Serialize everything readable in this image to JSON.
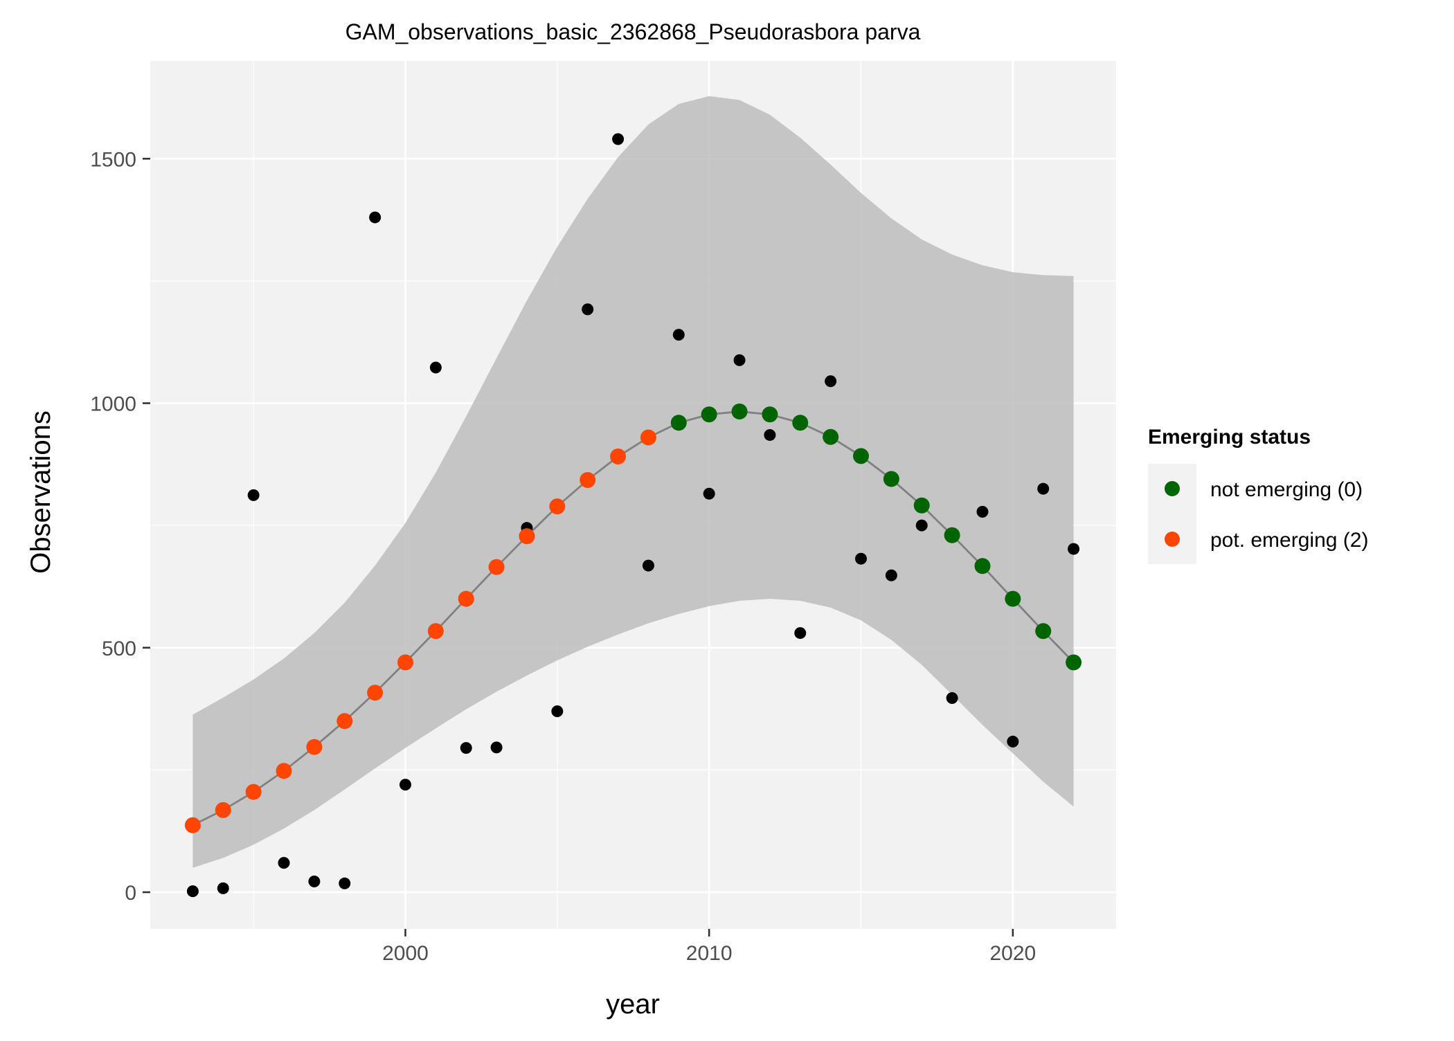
{
  "chart_data": {
    "type": "scatter",
    "title": "GAM_observations_basic_2362868_Pseudorasbora parva",
    "xlabel": "year",
    "ylabel": "Observations",
    "xlim": [
      1991.6,
      2023.4
    ],
    "ylim": [
      -75,
      1700
    ],
    "x_ticks": [
      2000,
      2010,
      2020
    ],
    "x_tick_labels": [
      "2000",
      "2010",
      "2020"
    ],
    "y_ticks": [
      0,
      500,
      1000,
      1500
    ],
    "y_tick_labels": [
      "0",
      "500",
      "1000",
      "1500"
    ],
    "grid": true,
    "legend": {
      "title": "Emerging status",
      "position": "right",
      "entries": [
        {
          "label": "not emerging (0)",
          "color": "#006400"
        },
        {
          "label": "pot. emerging (2)",
          "color": "#FF4500"
        }
      ]
    },
    "observed": {
      "color": "#000000",
      "points": [
        {
          "x": 1993,
          "y": 2
        },
        {
          "x": 1994,
          "y": 8
        },
        {
          "x": 1995,
          "y": 812
        },
        {
          "x": 1996,
          "y": 60
        },
        {
          "x": 1997,
          "y": 22
        },
        {
          "x": 1998,
          "y": 18
        },
        {
          "x": 1999,
          "y": 1380
        },
        {
          "x": 2000,
          "y": 220
        },
        {
          "x": 2001,
          "y": 1073
        },
        {
          "x": 2002,
          "y": 295
        },
        {
          "x": 2003,
          "y": 296
        },
        {
          "x": 2004,
          "y": 745
        },
        {
          "x": 2005,
          "y": 370
        },
        {
          "x": 2006,
          "y": 1192
        },
        {
          "x": 2007,
          "y": 1540
        },
        {
          "x": 2008,
          "y": 668
        },
        {
          "x": 2009,
          "y": 1140
        },
        {
          "x": 2010,
          "y": 815
        },
        {
          "x": 2011,
          "y": 1088
        },
        {
          "x": 2012,
          "y": 935
        },
        {
          "x": 2013,
          "y": 530
        },
        {
          "x": 2014,
          "y": 1045
        },
        {
          "x": 2015,
          "y": 682
        },
        {
          "x": 2016,
          "y": 648
        },
        {
          "x": 2017,
          "y": 750
        },
        {
          "x": 2018,
          "y": 397
        },
        {
          "x": 2019,
          "y": 778
        },
        {
          "x": 2020,
          "y": 308
        },
        {
          "x": 2021,
          "y": 825
        },
        {
          "x": 2022,
          "y": 702
        }
      ]
    },
    "fit": {
      "line_color": "#808080",
      "band_color": "#bdbdbd",
      "points": [
        {
          "x": 1993,
          "y": 137,
          "lower": 50,
          "upper": 363,
          "status": "pot. emerging (2)"
        },
        {
          "x": 1994,
          "y": 168,
          "lower": 70,
          "upper": 398,
          "status": "pot. emerging (2)"
        },
        {
          "x": 1995,
          "y": 205,
          "lower": 97,
          "upper": 435,
          "status": "pot. emerging (2)"
        },
        {
          "x": 1996,
          "y": 248,
          "lower": 130,
          "upper": 478,
          "status": "pot. emerging (2)"
        },
        {
          "x": 1997,
          "y": 297,
          "lower": 168,
          "upper": 530,
          "status": "pot. emerging (2)"
        },
        {
          "x": 1998,
          "y": 350,
          "lower": 210,
          "upper": 592,
          "status": "pot. emerging (2)"
        },
        {
          "x": 1999,
          "y": 408,
          "lower": 253,
          "upper": 668,
          "status": "pot. emerging (2)"
        },
        {
          "x": 2000,
          "y": 470,
          "lower": 295,
          "upper": 755,
          "status": "pot. emerging (2)"
        },
        {
          "x": 2001,
          "y": 534,
          "lower": 335,
          "upper": 858,
          "status": "pot. emerging (2)"
        },
        {
          "x": 2002,
          "y": 600,
          "lower": 374,
          "upper": 973,
          "status": "pot. emerging (2)"
        },
        {
          "x": 2003,
          "y": 665,
          "lower": 410,
          "upper": 1092,
          "status": "pot. emerging (2)"
        },
        {
          "x": 2004,
          "y": 728,
          "lower": 443,
          "upper": 1210,
          "status": "pot. emerging (2)"
        },
        {
          "x": 2005,
          "y": 789,
          "lower": 474,
          "upper": 1320,
          "status": "pot. emerging (2)"
        },
        {
          "x": 2006,
          "y": 843,
          "lower": 502,
          "upper": 1418,
          "status": "pot. emerging (2)"
        },
        {
          "x": 2007,
          "y": 891,
          "lower": 527,
          "upper": 1503,
          "status": "pot. emerging (2)"
        },
        {
          "x": 2008,
          "y": 930,
          "lower": 550,
          "upper": 1570,
          "status": "pot. emerging (2)"
        },
        {
          "x": 2009,
          "y": 960,
          "lower": 569,
          "upper": 1612,
          "status": "not emerging (0)"
        },
        {
          "x": 2010,
          "y": 977,
          "lower": 585,
          "upper": 1628,
          "status": "not emerging (0)"
        },
        {
          "x": 2011,
          "y": 983,
          "lower": 596,
          "upper": 1620,
          "status": "not emerging (0)"
        },
        {
          "x": 2012,
          "y": 977,
          "lower": 600,
          "upper": 1590,
          "status": "not emerging (0)"
        },
        {
          "x": 2013,
          "y": 960,
          "lower": 596,
          "upper": 1543,
          "status": "not emerging (0)"
        },
        {
          "x": 2014,
          "y": 931,
          "lower": 582,
          "upper": 1488,
          "status": "not emerging (0)"
        },
        {
          "x": 2015,
          "y": 892,
          "lower": 556,
          "upper": 1430,
          "status": "not emerging (0)"
        },
        {
          "x": 2016,
          "y": 845,
          "lower": 516,
          "upper": 1378,
          "status": "not emerging (0)"
        },
        {
          "x": 2017,
          "y": 791,
          "lower": 465,
          "upper": 1335,
          "status": "not emerging (0)"
        },
        {
          "x": 2018,
          "y": 730,
          "lower": 404,
          "upper": 1304,
          "status": "not emerging (0)"
        },
        {
          "x": 2019,
          "y": 667,
          "lower": 342,
          "upper": 1282,
          "status": "not emerging (0)"
        },
        {
          "x": 2020,
          "y": 600,
          "lower": 284,
          "upper": 1268,
          "status": "not emerging (0)"
        },
        {
          "x": 2021,
          "y": 534,
          "lower": 226,
          "upper": 1262,
          "status": "not emerging (0)"
        },
        {
          "x": 2022,
          "y": 470,
          "lower": 175,
          "upper": 1260,
          "status": "not emerging (0)"
        }
      ]
    }
  }
}
